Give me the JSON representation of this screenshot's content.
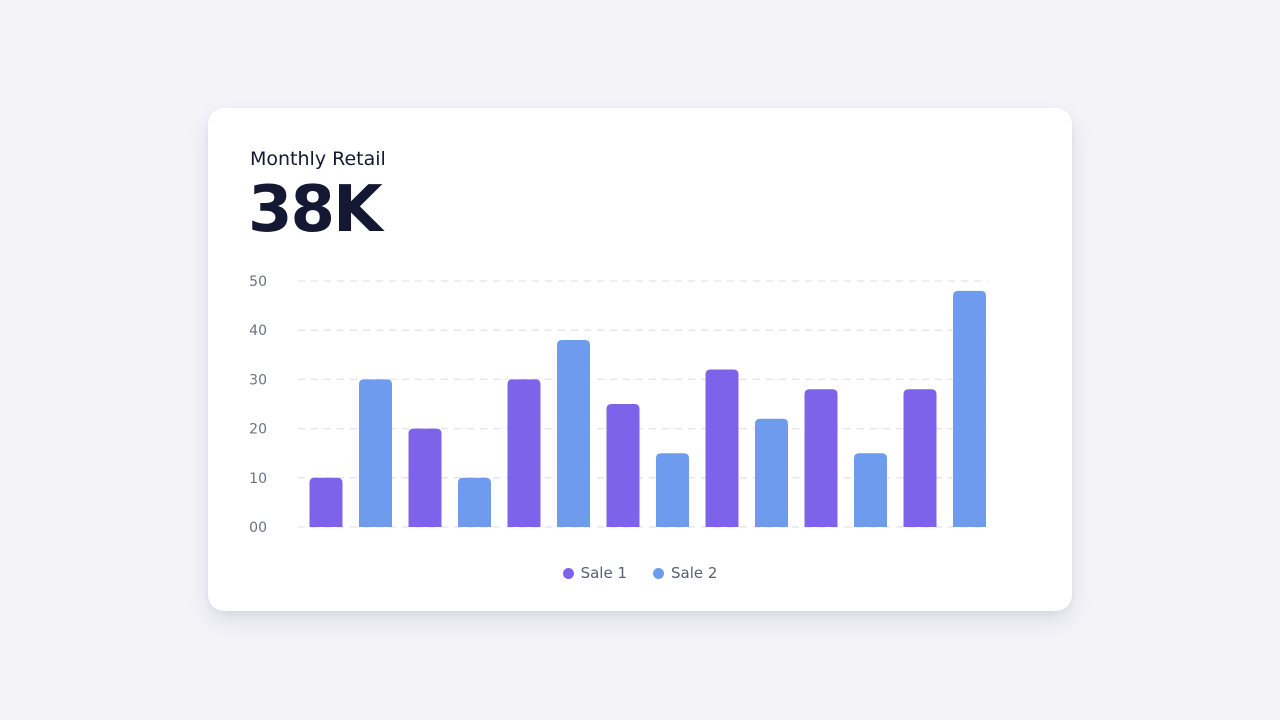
{
  "card": {
    "title": "Monthly Retail",
    "value": "38K"
  },
  "colors": {
    "sale1": "#7d63ea",
    "sale2": "#6f9bef",
    "grid": "#e3e4ea",
    "text_dark": "#141833"
  },
  "legend": [
    {
      "label": "Sale 1",
      "color": "#7d63ea"
    },
    {
      "label": "Sale 2",
      "color": "#6f9bef"
    }
  ],
  "chart_data": {
    "type": "bar",
    "title": "Monthly Retail",
    "ylim": [
      0,
      50
    ],
    "yticks": [
      "00",
      "10",
      "20",
      "30",
      "40",
      "50"
    ],
    "grid": true,
    "legend_position": "bottom-center",
    "series": [
      {
        "name": "Sale 1",
        "values": [
          10,
          20,
          30,
          25,
          32,
          28,
          28
        ]
      },
      {
        "name": "Sale 2",
        "values": [
          30,
          10,
          38,
          15,
          22,
          15,
          48
        ]
      }
    ]
  }
}
